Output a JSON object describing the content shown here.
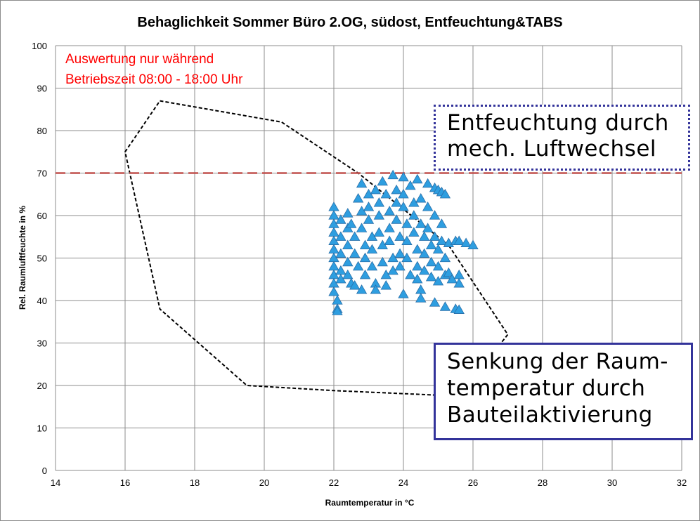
{
  "chart_data": {
    "type": "scatter",
    "title": "Behaglichkeit Sommer Büro 2.OG, südost, Entfeuchtung&TABS",
    "xlabel": "Raumtemperatur in °C",
    "ylabel": "Rel. Raumluftfeuchte in %",
    "xlim": [
      14,
      32
    ],
    "ylim": [
      0,
      100
    ],
    "xticks": [
      "14",
      "16",
      "18",
      "20",
      "22",
      "24",
      "26",
      "28",
      "30",
      "32"
    ],
    "yticks": [
      "0",
      "10",
      "20",
      "30",
      "40",
      "50",
      "60",
      "70",
      "80",
      "90",
      "100"
    ],
    "grid": true,
    "legend": "none",
    "marker": "triangle",
    "marker_color": "#2e9ee0",
    "comfort_zone": {
      "style": "dashed",
      "color": "#000000",
      "points": [
        [
          17,
          87
        ],
        [
          20.5,
          82
        ],
        [
          22.7,
          70
        ],
        [
          25.3,
          53
        ],
        [
          27,
          32
        ],
        [
          25.6,
          17.5
        ],
        [
          22,
          18.8
        ],
        [
          19.5,
          20
        ],
        [
          17,
          38
        ],
        [
          16,
          75
        ],
        [
          17,
          87
        ]
      ]
    },
    "humidity_limit": {
      "y": 70,
      "color": "#c0504d",
      "style": "dashed"
    },
    "series": [
      {
        "points": [
          [
            22,
            62
          ],
          [
            22,
            60
          ],
          [
            22,
            58
          ],
          [
            22,
            56
          ],
          [
            22,
            54
          ],
          [
            22,
            52
          ],
          [
            22,
            50
          ],
          [
            22,
            48
          ],
          [
            22,
            46
          ],
          [
            22,
            44
          ],
          [
            22,
            42
          ],
          [
            22.1,
            40
          ],
          [
            22.1,
            38
          ],
          [
            22.1,
            37.5
          ],
          [
            22.2,
            59
          ],
          [
            22.2,
            55
          ],
          [
            22.2,
            51
          ],
          [
            22.2,
            47
          ],
          [
            22.2,
            45
          ],
          [
            22.4,
            60.5
          ],
          [
            22.4,
            57
          ],
          [
            22.4,
            53
          ],
          [
            22.4,
            49
          ],
          [
            22.4,
            46
          ],
          [
            22.5,
            44
          ],
          [
            22.6,
            43.5
          ],
          [
            22.5,
            58
          ],
          [
            22.6,
            55
          ],
          [
            22.6,
            51
          ],
          [
            22.7,
            48
          ],
          [
            22.8,
            42.5
          ],
          [
            22.7,
            64
          ],
          [
            22.8,
            67.5
          ],
          [
            22.8,
            61
          ],
          [
            22.8,
            57
          ],
          [
            22.9,
            53
          ],
          [
            22.9,
            50
          ],
          [
            22.9,
            46
          ],
          [
            23,
            65
          ],
          [
            23,
            62
          ],
          [
            23,
            59
          ],
          [
            23.1,
            55
          ],
          [
            23.1,
            52
          ],
          [
            23.1,
            48
          ],
          [
            23.2,
            44
          ],
          [
            23.2,
            42.5
          ],
          [
            23.2,
            66
          ],
          [
            23.3,
            63
          ],
          [
            23.3,
            60
          ],
          [
            23.3,
            56
          ],
          [
            23.4,
            53
          ],
          [
            23.4,
            49
          ],
          [
            23.5,
            46
          ],
          [
            23.5,
            43.5
          ],
          [
            23.4,
            68
          ],
          [
            23.5,
            65
          ],
          [
            23.6,
            61
          ],
          [
            23.6,
            57
          ],
          [
            23.6,
            54
          ],
          [
            23.7,
            50
          ],
          [
            23.7,
            47
          ],
          [
            23.7,
            69.5
          ],
          [
            23.8,
            66
          ],
          [
            23.8,
            63
          ],
          [
            23.8,
            59
          ],
          [
            23.9,
            55
          ],
          [
            23.9,
            51
          ],
          [
            23.9,
            48
          ],
          [
            24,
            69
          ],
          [
            24,
            65
          ],
          [
            24,
            62
          ],
          [
            24.1,
            58
          ],
          [
            24.1,
            54
          ],
          [
            24.1,
            50
          ],
          [
            24.2,
            46
          ],
          [
            24,
            41.5
          ],
          [
            24.2,
            67
          ],
          [
            24.3,
            63
          ],
          [
            24.3,
            60
          ],
          [
            24.3,
            56
          ],
          [
            24.4,
            52
          ],
          [
            24.4,
            48
          ],
          [
            24.4,
            45
          ],
          [
            24.4,
            68.5
          ],
          [
            24.5,
            64
          ],
          [
            24.5,
            58
          ],
          [
            24.6,
            55
          ],
          [
            24.6,
            51
          ],
          [
            24.6,
            47
          ],
          [
            24.5,
            42.5
          ],
          [
            24.5,
            40.5
          ],
          [
            24.7,
            67.5
          ],
          [
            24.7,
            62
          ],
          [
            24.7,
            57
          ],
          [
            24.8,
            53
          ],
          [
            24.8,
            49
          ],
          [
            24.8,
            45.5
          ],
          [
            24.9,
            66.5
          ],
          [
            24.9,
            60
          ],
          [
            24.9,
            55
          ],
          [
            25,
            52
          ],
          [
            25,
            48
          ],
          [
            25,
            44.5
          ],
          [
            24.9,
            39.5
          ],
          [
            25,
            66
          ],
          [
            25.1,
            58
          ],
          [
            25.1,
            54
          ],
          [
            25.2,
            50
          ],
          [
            25.2,
            46
          ],
          [
            25.1,
            65.5
          ],
          [
            25.2,
            65
          ],
          [
            25.2,
            38.5
          ],
          [
            25.3,
            53.5
          ],
          [
            25.3,
            46.5
          ],
          [
            25.4,
            45
          ],
          [
            25.5,
            54
          ],
          [
            25.5,
            38
          ],
          [
            25.6,
            54
          ],
          [
            25.6,
            44
          ],
          [
            25.6,
            37.8
          ],
          [
            25.6,
            46
          ],
          [
            25.8,
            53.5
          ],
          [
            26,
            53
          ]
        ]
      }
    ],
    "annotations": [
      {
        "lines": [
          "Auswertung nur während",
          "Betriebszeit 08:00 - 18:00 Uhr"
        ],
        "color": "#ff0000"
      },
      {
        "lines": [
          "Entfeuchtung durch",
          "mech. Luftwechsel"
        ],
        "border": "dotted",
        "border_color": "#33339a"
      },
      {
        "lines": [
          "Senkung der Raum-",
          "temperatur durch",
          "Bauteilaktivierung"
        ],
        "border": "solid",
        "border_color": "#33339a"
      }
    ]
  }
}
